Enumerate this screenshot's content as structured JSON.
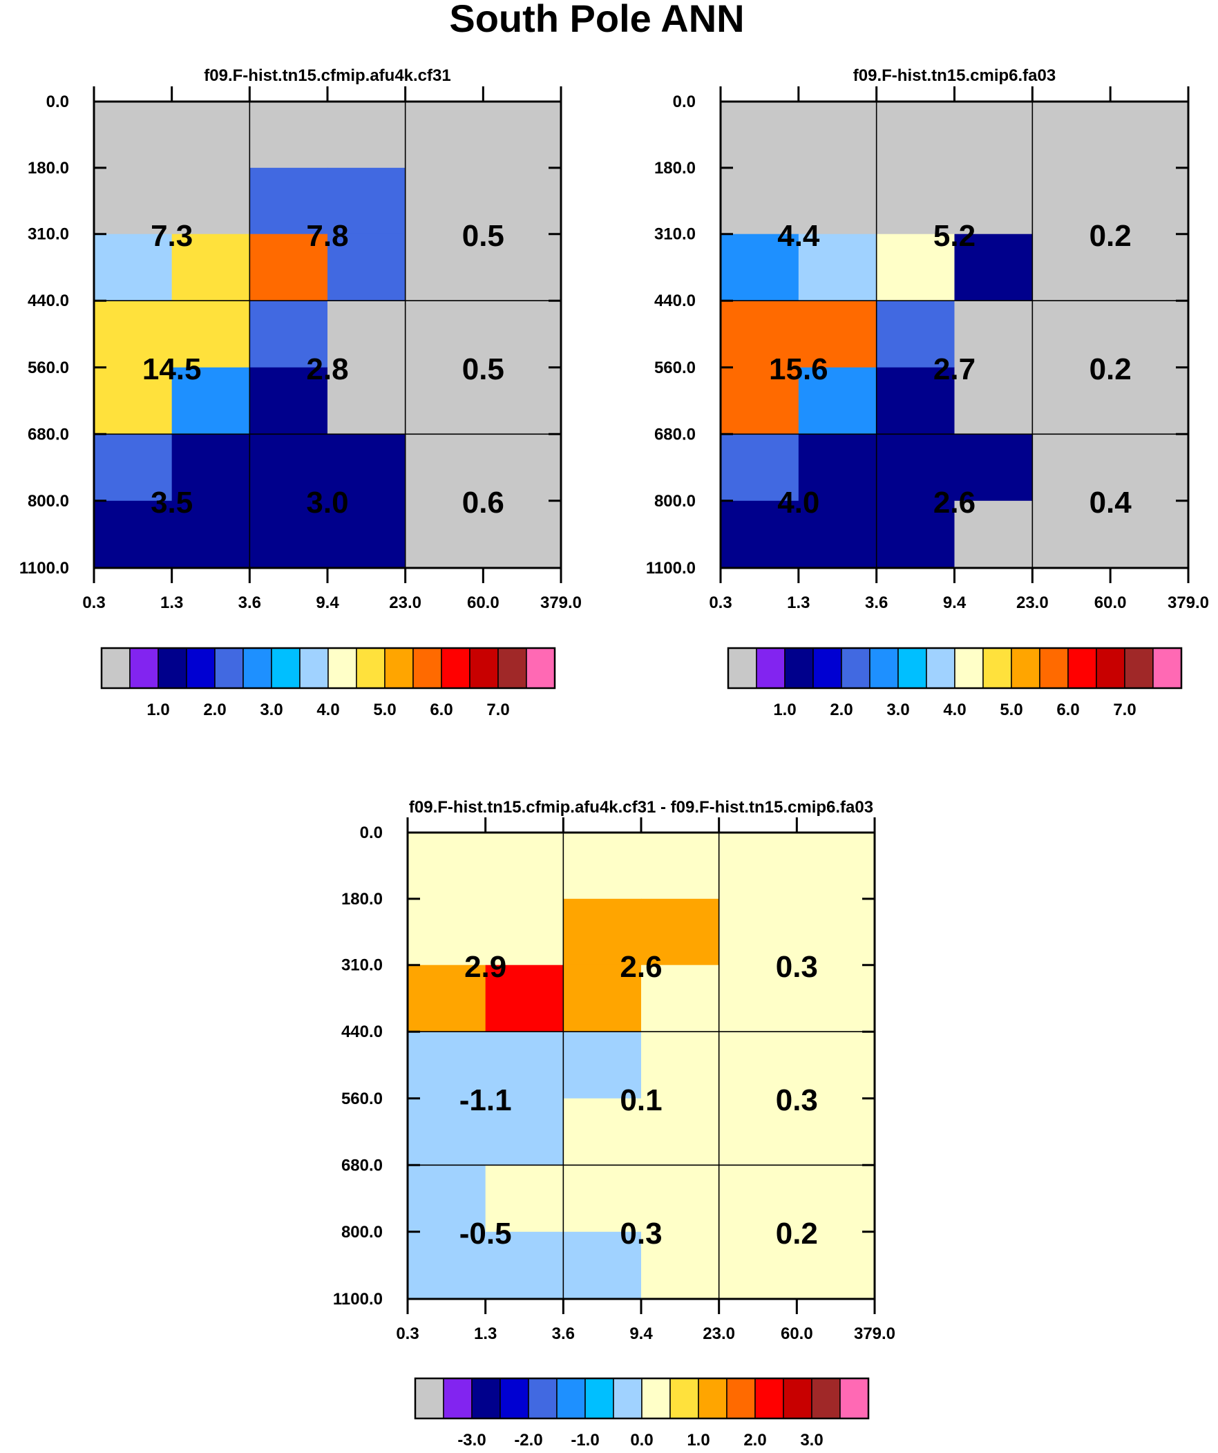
{
  "title": "South Pole ANN",
  "chart_data": [
    {
      "type": "heatmap",
      "title": "f09.F-hist.tn15.cfmip.afu4k.cf31",
      "x_ticks": [
        "0.3",
        "1.3",
        "3.6",
        "9.4",
        "23.0",
        "60.0",
        "379.0"
      ],
      "y_ticks": [
        "0.0",
        "180.0",
        "310.0",
        "440.0",
        "560.0",
        "680.0",
        "800.0",
        "1100.0"
      ],
      "cells": [
        [
          -1,
          -1,
          -1,
          -1,
          -1,
          -1
        ],
        [
          -1,
          -1,
          1.5,
          1.5,
          -1,
          -1
        ],
        [
          3.2,
          4.2,
          5.2,
          1.5,
          -1,
          -1
        ],
        [
          4.2,
          4.2,
          1.5,
          -1,
          -1,
          -1
        ],
        [
          4.2,
          2.2,
          0.5,
          -1,
          -1,
          -1
        ],
        [
          1.5,
          0.5,
          0.5,
          0.5,
          -1,
          -1
        ],
        [
          0.5,
          0.5,
          0.5,
          0.5,
          -1,
          -1
        ]
      ],
      "summary": [
        "7.3",
        "7.8",
        "0.5",
        "14.5",
        "2.8",
        "0.5",
        "3.5",
        "3.0",
        "0.6"
      ],
      "colorbar": {
        "colors": [
          "#c8c8c8",
          "#8224f0",
          "#00008c",
          "#0000d2",
          "#4169e1",
          "#1e90ff",
          "#00bfff",
          "#a0d2ff",
          "#ffffc8",
          "#ffe13c",
          "#ffa500",
          "#ff6a00",
          "#ff0000",
          "#c80000",
          "#a02828",
          "#ff69b4"
        ],
        "labels": [
          "1.0",
          "2.0",
          "3.0",
          "4.0",
          "5.0",
          "6.0",
          "7.0"
        ]
      }
    },
    {
      "type": "heatmap",
      "title": "f09.F-hist.tn15.cmip6.fa03",
      "x_ticks": [
        "0.3",
        "1.3",
        "3.6",
        "9.4",
        "23.0",
        "60.0",
        "379.0"
      ],
      "y_ticks": [
        "0.0",
        "180.0",
        "310.0",
        "440.0",
        "560.0",
        "680.0",
        "800.0",
        "1100.0"
      ],
      "cells": [
        [
          -1,
          -1,
          -1,
          -1,
          -1,
          -1
        ],
        [
          -1,
          -1,
          -1,
          -1,
          -1,
          -1
        ],
        [
          2.2,
          3.2,
          3.8,
          0.5,
          -1,
          -1
        ],
        [
          5.2,
          5.2,
          1.5,
          -1,
          -1,
          -1
        ],
        [
          5.2,
          2.2,
          0.5,
          -1,
          -1,
          -1
        ],
        [
          1.5,
          0.5,
          0.5,
          0.5,
          -1,
          -1
        ],
        [
          0.5,
          0.5,
          0.5,
          -1,
          -1,
          -1
        ]
      ],
      "summary": [
        "4.4",
        "5.2",
        "0.2",
        "15.6",
        "2.7",
        "0.2",
        "4.0",
        "2.6",
        "0.4"
      ],
      "colorbar": {
        "colors": [
          "#c8c8c8",
          "#8224f0",
          "#00008c",
          "#0000d2",
          "#4169e1",
          "#1e90ff",
          "#00bfff",
          "#a0d2ff",
          "#ffffc8",
          "#ffe13c",
          "#ffa500",
          "#ff6a00",
          "#ff0000",
          "#c80000",
          "#a02828",
          "#ff69b4"
        ],
        "labels": [
          "1.0",
          "2.0",
          "3.0",
          "4.0",
          "5.0",
          "6.0",
          "7.0"
        ]
      }
    },
    {
      "type": "heatmap",
      "title": "f09.F-hist.tn15.cfmip.afu4k.cf31 - f09.F-hist.tn15.cmip6.fa03",
      "x_ticks": [
        "0.3",
        "1.3",
        "3.6",
        "9.4",
        "23.0",
        "60.0",
        "379.0"
      ],
      "y_ticks": [
        "0.0",
        "180.0",
        "310.0",
        "440.0",
        "560.0",
        "680.0",
        "800.0",
        "1100.0"
      ],
      "cells": [
        [
          0.2,
          0.2,
          0.2,
          0.2,
          0.2,
          0.2
        ],
        [
          0.2,
          0.2,
          1.2,
          1.2,
          0.2,
          0.2
        ],
        [
          1.2,
          2.2,
          1.2,
          0.2,
          0.2,
          0.2
        ],
        [
          -0.2,
          -0.2,
          -0.2,
          0.2,
          0.2,
          0.2
        ],
        [
          -0.2,
          -0.2,
          0.2,
          0.2,
          0.2,
          0.2
        ],
        [
          -0.2,
          0.2,
          0.2,
          0.2,
          0.2,
          0.2
        ],
        [
          -0.2,
          -0.2,
          -0.2,
          0.2,
          0.2,
          0.2
        ]
      ],
      "summary": [
        "2.9",
        "2.6",
        "0.3",
        "-1.1",
        "0.1",
        "0.3",
        "-0.5",
        "0.3",
        "0.2"
      ],
      "colorbar": {
        "colors": [
          "#c8c8c8",
          "#8224f0",
          "#00008c",
          "#0000d2",
          "#4169e1",
          "#1e90ff",
          "#00bfff",
          "#a0d2ff",
          "#ffffc8",
          "#ffe13c",
          "#ffa500",
          "#ff6a00",
          "#ff0000",
          "#c80000",
          "#a02828",
          "#ff69b4"
        ],
        "labels": [
          "-3.0",
          "-2.0",
          "-1.0",
          "0.0",
          "1.0",
          "2.0",
          "3.0"
        ]
      }
    }
  ]
}
